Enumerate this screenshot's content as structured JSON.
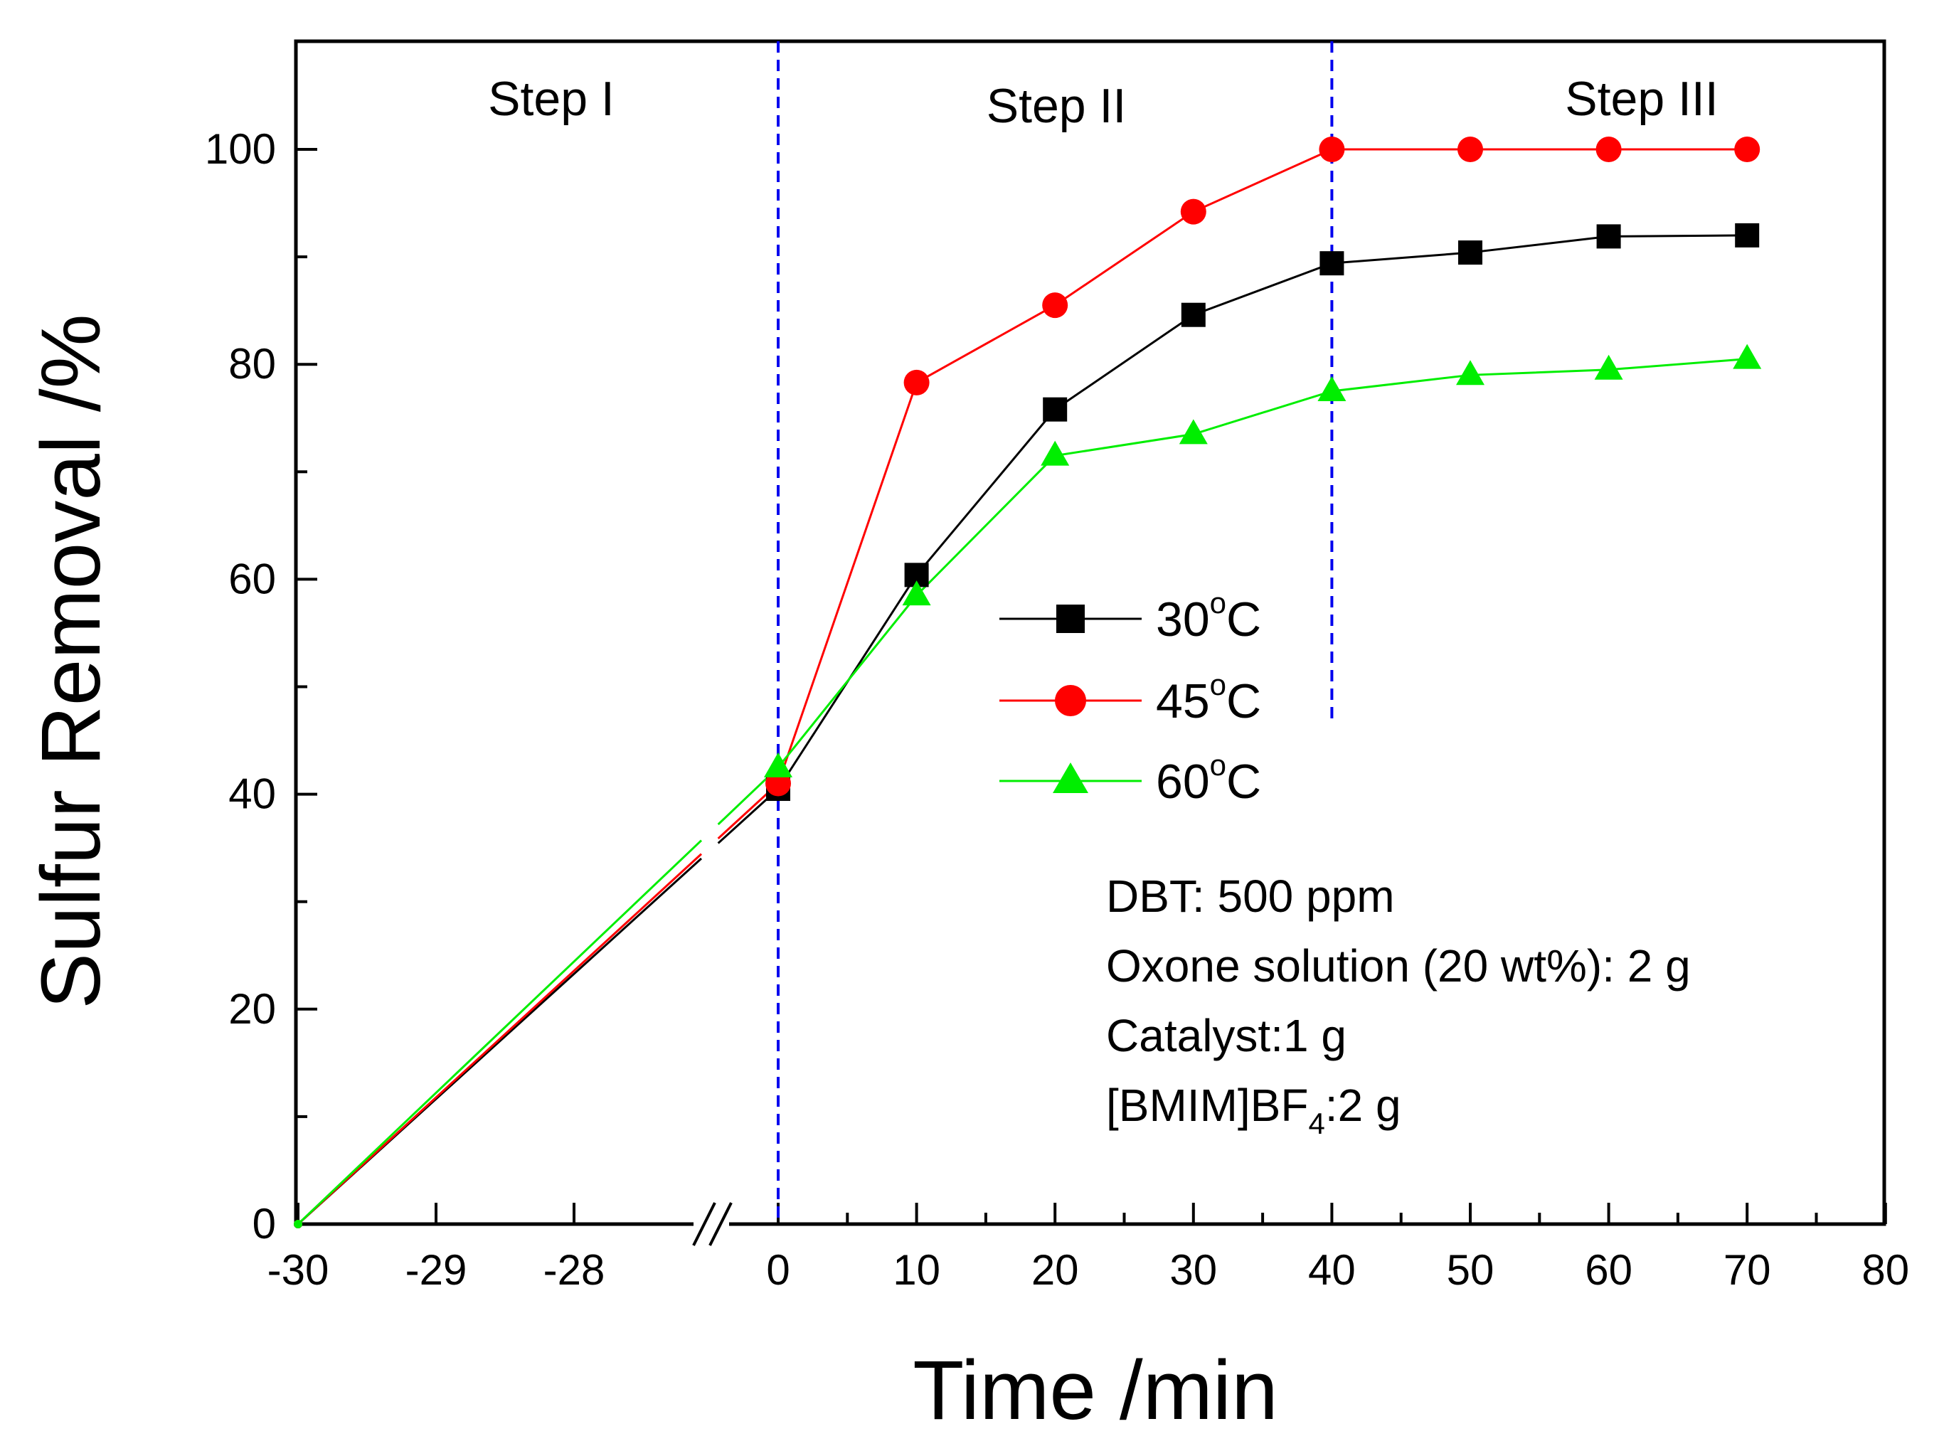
{
  "chart_data": {
    "type": "line",
    "xlabel": "Time /min",
    "ylabel": "Sulfur Removal /%",
    "ylim": [
      0,
      110
    ],
    "x_axis_break": "between -28 and 0",
    "x_segment_left": {
      "range": [
        -30,
        -26.5
      ],
      "ticks": [
        -30,
        -29,
        -28
      ]
    },
    "x_segment_right": {
      "range": [
        0,
        80
      ],
      "ticks": [
        0,
        10,
        20,
        30,
        40,
        50,
        60,
        70,
        80
      ]
    },
    "yticks": [
      0,
      20,
      40,
      60,
      80,
      100
    ],
    "x_tick_labels": [
      "-30",
      "-29",
      "-28",
      "0",
      "10",
      "20",
      "30",
      "40",
      "50",
      "60",
      "70",
      "80"
    ],
    "y_tick_labels": [
      "0",
      "20",
      "40",
      "60",
      "80",
      "100"
    ],
    "x": [
      -30,
      0,
      10,
      20,
      30,
      40,
      50,
      60,
      70
    ],
    "series": [
      {
        "name": "30°C",
        "temp": "30",
        "unit": "C",
        "marker": "square",
        "color": "#000000",
        "values": [
          0,
          40.5,
          60.4,
          75.8,
          84.6,
          89.4,
          90.4,
          91.9,
          92.0
        ]
      },
      {
        "name": "45°C",
        "temp": "45",
        "unit": "C",
        "marker": "circle",
        "color": "#ff0000",
        "values": [
          0,
          41.0,
          78.3,
          85.5,
          94.2,
          100,
          100,
          100,
          100
        ]
      },
      {
        "name": "60°C",
        "temp": "60",
        "unit": "C",
        "marker": "triangle",
        "color": "#00ee00",
        "values": [
          0,
          42.5,
          58.5,
          71.5,
          73.5,
          77.5,
          79.0,
          79.5,
          80.5
        ]
      }
    ],
    "vertical_markers": [
      0,
      40
    ],
    "steps": [
      "Step I",
      "Step II",
      "Step III"
    ],
    "annotations": {
      "line1": "DBT: 500 ppm",
      "line2": "Oxone solution (20 wt%): 2 g",
      "line3": "Catalyst:1 g",
      "line4_prefix": "[BMIM]BF",
      "line4_sub": "4",
      "line4_suffix": ":2 g"
    },
    "legend_position": "center",
    "grid": false,
    "colors": {
      "axis": "#000000",
      "marker_lines": "#0000ee"
    }
  }
}
